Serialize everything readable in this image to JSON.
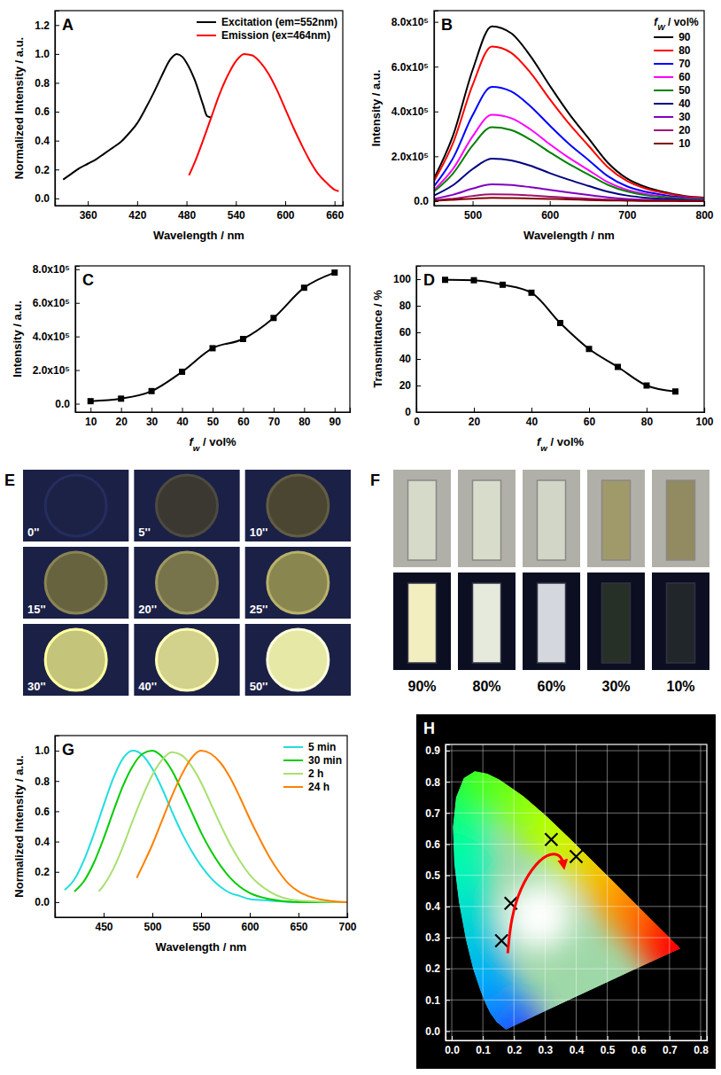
{
  "chart_data": [
    {
      "type": "line",
      "title": "A",
      "xlabel": "Wavelength / nm",
      "ylabel": "Normalized Intensity / a.u.",
      "xlim": [
        320,
        670
      ],
      "ylim": [
        -0.05,
        1.3
      ],
      "xticks": [
        360,
        420,
        480,
        540,
        600,
        660
      ],
      "yticks": [
        {
          "value": 0,
          "label": "0.0"
        },
        0.2,
        0.4,
        0.6,
        0.8,
        {
          "value": 1,
          "label": "1.0"
        },
        1.2
      ],
      "legend": "upper right",
      "series": [
        {
          "name": "Excitation (em=552nm)",
          "color": "#000000",
          "x": [
            330,
            340,
            350,
            360,
            370,
            380,
            390,
            400,
            410,
            420,
            430,
            440,
            450,
            460,
            468,
            475,
            480,
            490,
            500,
            505,
            510
          ],
          "values": [
            0.13,
            0.17,
            0.21,
            0.24,
            0.27,
            0.31,
            0.35,
            0.39,
            0.45,
            0.52,
            0.62,
            0.73,
            0.85,
            0.96,
            1.0,
            0.98,
            0.94,
            0.82,
            0.65,
            0.57,
            0.56
          ]
        },
        {
          "name": "Emission (ex=464nm)",
          "color": "#ff0000",
          "x": [
            483,
            490,
            500,
            510,
            520,
            530,
            540,
            550,
            560,
            570,
            580,
            590,
            600,
            610,
            620,
            630,
            640,
            650,
            660,
            665
          ],
          "values": [
            0.16,
            0.25,
            0.4,
            0.56,
            0.72,
            0.85,
            0.95,
            1.0,
            0.99,
            0.94,
            0.86,
            0.75,
            0.62,
            0.49,
            0.37,
            0.26,
            0.17,
            0.11,
            0.06,
            0.05
          ]
        }
      ]
    },
    {
      "type": "line",
      "title": "B",
      "xlabel": "Wavelength / nm",
      "ylabel": "Intensity / a.u.",
      "xlim": [
        450,
        800
      ],
      "ylim": [
        -20000,
        850000
      ],
      "xticks": [
        500,
        600,
        700,
        800
      ],
      "yticks": [
        {
          "value": 0,
          "label": "0.0"
        },
        {
          "value": 200000,
          "label": "2.0x10⁵"
        },
        {
          "value": 400000,
          "label": "4.0x10⁵"
        },
        {
          "value": 600000,
          "label": "6.0x10⁵"
        },
        {
          "value": 800000,
          "label": "8.0x10⁵"
        }
      ],
      "legend": "upper right",
      "legend_title": "fW / vol%",
      "x": [
        450,
        475,
        500,
        525,
        550,
        575,
        600,
        625,
        650,
        675,
        700,
        725,
        750,
        775,
        800
      ],
      "series": [
        {
          "name": "90",
          "color": "#000000",
          "values": [
            101000,
            296000,
            585000,
            780000,
            749000,
            647000,
            515000,
            390000,
            281000,
            172000,
            101000,
            62000,
            39000,
            23000,
            16000
          ]
        },
        {
          "name": "80",
          "color": "#ff0000",
          "values": [
            90000,
            262000,
            518000,
            690000,
            662000,
            573000,
            455000,
            345000,
            248000,
            152000,
            90000,
            55000,
            35000,
            21000,
            14000
          ]
        },
        {
          "name": "70",
          "color": "#0000ff",
          "values": [
            66000,
            194000,
            383000,
            510000,
            490000,
            423000,
            337000,
            255000,
            184000,
            112000,
            66000,
            41000,
            26000,
            15000,
            10000
          ]
        },
        {
          "name": "60",
          "color": "#ff00ff",
          "values": [
            50000,
            146000,
            289000,
            385000,
            370000,
            320000,
            254000,
            193000,
            139000,
            85000,
            50000,
            31000,
            19000,
            12000,
            8000
          ]
        },
        {
          "name": "50",
          "color": "#008000",
          "values": [
            43000,
            125000,
            248000,
            330000,
            317000,
            274000,
            218000,
            165000,
            119000,
            73000,
            43000,
            26000,
            17000,
            10000,
            7000
          ]
        },
        {
          "name": "40",
          "color": "#000080",
          "values": [
            25000,
            72000,
            143000,
            190000,
            182000,
            158000,
            125000,
            95000,
            68000,
            42000,
            25000,
            15000,
            10000,
            6000,
            4000
          ]
        },
        {
          "name": "30",
          "color": "#8000c0",
          "values": [
            10000,
            29000,
            56000,
            75000,
            72000,
            62000,
            50000,
            38000,
            27000,
            17000,
            10000,
            6000,
            4000,
            2000,
            2000
          ]
        },
        {
          "name": "20",
          "color": "#a01070",
          "values": [
            4000,
            11000,
            23000,
            30000,
            29000,
            25000,
            20000,
            15000,
            11000,
            7000,
            4000,
            2000,
            2000,
            1000,
            1000
          ]
        },
        {
          "name": "10",
          "color": "#800000",
          "values": [
            2000,
            6000,
            11000,
            15000,
            14000,
            12000,
            10000,
            8000,
            5000,
            3000,
            2000,
            1000,
            1000,
            0,
            0
          ]
        }
      ]
    },
    {
      "type": "line",
      "title": "C",
      "xlabel": "fw / vol%",
      "ylabel": "Intensity / a.u.",
      "xlim": [
        5,
        95
      ],
      "ylim": [
        -50000,
        820000
      ],
      "xticks": [
        10,
        20,
        30,
        40,
        50,
        60,
        70,
        80,
        90
      ],
      "yticks": [
        {
          "value": 0,
          "label": "0.0"
        },
        {
          "value": 200000,
          "label": "2.0x10⁵"
        },
        {
          "value": 400000,
          "label": "4.0x10⁵"
        },
        {
          "value": 600000,
          "label": "6.0x10⁵"
        },
        {
          "value": 800000,
          "label": "8.0x10⁵"
        }
      ],
      "marker": "square",
      "color": "#000000",
      "x": [
        10,
        20,
        30,
        40,
        50,
        60,
        70,
        80,
        90
      ],
      "values": [
        15000,
        30000,
        75000,
        190000,
        330000,
        385000,
        510000,
        690000,
        780000
      ]
    },
    {
      "type": "line",
      "title": "D",
      "xlabel": "fw / vol%",
      "ylabel": "Transmittance / %",
      "xlim": [
        0,
        100
      ],
      "ylim": [
        0,
        110
      ],
      "xticks": [
        0,
        20,
        40,
        60,
        80,
        100
      ],
      "yticks": [
        0,
        20,
        40,
        60,
        80,
        100
      ],
      "marker": "square",
      "color": "#000000",
      "x": [
        10,
        20,
        30,
        40,
        50,
        60,
        70,
        80,
        90
      ],
      "values": [
        99.5,
        99.2,
        95.8,
        89.8,
        67,
        47.5,
        34,
        20,
        15.5
      ]
    },
    {
      "type": "image",
      "title": "E",
      "categories": [
        "0''",
        "5''",
        "10''",
        "15''",
        "20''",
        "25''",
        "30''",
        "40''",
        "50''"
      ],
      "colors": [
        "#1c2246",
        "#3a3830",
        "#4a4632",
        "#67633f",
        "#77734a",
        "#8a8650",
        "#c4c47a",
        "#d2d28c",
        "#e6e8a6"
      ]
    },
    {
      "type": "image",
      "title": "F",
      "categories": [
        "90%",
        "80%",
        "60%",
        "30%",
        "10%"
      ],
      "colors": [
        [
          "#d6dac8",
          "#f2eec0"
        ],
        [
          "#d8dcca",
          "#e6eadc"
        ],
        [
          "#d2d6c6",
          "#d4d8de"
        ],
        [
          "#a09a6a",
          "#263026"
        ],
        [
          "#928a60",
          "#20262a"
        ]
      ]
    },
    {
      "type": "line",
      "title": "G",
      "xlabel": "Wavelength / nm",
      "ylabel": "Normalized Intensity / a.u.",
      "xlim": [
        400,
        700
      ],
      "ylim": [
        -0.1,
        1.1
      ],
      "xticks": [
        450,
        500,
        550,
        600,
        650,
        700
      ],
      "yticks": [
        {
          "value": 0,
          "label": "0.0"
        },
        0.2,
        0.4,
        0.6,
        0.8,
        {
          "value": 1,
          "label": "1.0"
        }
      ],
      "legend": "upper right",
      "series": [
        {
          "name": "5 min",
          "color": "#22dede",
          "x": [
            410,
            420,
            430,
            440,
            450,
            460,
            470,
            480,
            490,
            500,
            510,
            520,
            530,
            540,
            550,
            560,
            570,
            580,
            590,
            600,
            620,
            650,
            700
          ],
          "values": [
            0.08,
            0.15,
            0.28,
            0.45,
            0.64,
            0.82,
            0.95,
            1.0,
            0.97,
            0.88,
            0.75,
            0.6,
            0.46,
            0.34,
            0.24,
            0.16,
            0.1,
            0.06,
            0.04,
            0.02,
            0.01,
            0,
            0
          ]
        },
        {
          "name": "30 min",
          "color": "#00cc00",
          "x": [
            420,
            430,
            440,
            450,
            460,
            470,
            480,
            490,
            500,
            510,
            520,
            530,
            540,
            550,
            560,
            570,
            580,
            590,
            600,
            620,
            650,
            700
          ],
          "values": [
            0.07,
            0.14,
            0.26,
            0.42,
            0.6,
            0.77,
            0.9,
            0.98,
            1.0,
            0.96,
            0.87,
            0.74,
            0.6,
            0.46,
            0.34,
            0.24,
            0.16,
            0.1,
            0.06,
            0.02,
            0,
            0
          ]
        },
        {
          "name": "2 h",
          "color": "#a8e070",
          "x": [
            445,
            450,
            460,
            470,
            480,
            490,
            500,
            510,
            520,
            530,
            540,
            550,
            560,
            570,
            580,
            590,
            600,
            620,
            650,
            700
          ],
          "values": [
            0.07,
            0.11,
            0.22,
            0.37,
            0.54,
            0.7,
            0.84,
            0.94,
            0.99,
            0.97,
            0.9,
            0.79,
            0.65,
            0.51,
            0.38,
            0.27,
            0.18,
            0.07,
            0.01,
            0
          ]
        },
        {
          "name": "24 h",
          "color": "#ff8000",
          "x": [
            484,
            490,
            500,
            510,
            520,
            530,
            540,
            550,
            560,
            570,
            580,
            590,
            600,
            610,
            620,
            630,
            640,
            650,
            660,
            680,
            700
          ],
          "values": [
            0.16,
            0.24,
            0.38,
            0.54,
            0.7,
            0.84,
            0.95,
            1.0,
            0.98,
            0.92,
            0.82,
            0.69,
            0.55,
            0.42,
            0.3,
            0.2,
            0.12,
            0.07,
            0.04,
            0.01,
            0
          ]
        }
      ]
    },
    {
      "type": "scatter",
      "title": "H",
      "marker": "x",
      "color": "#000000",
      "grid": true,
      "xlim": [
        -0.02,
        0.82
      ],
      "ylim": [
        -0.03,
        0.92
      ],
      "xticks": [
        {
          "value": 0,
          "label": "0.0"
        },
        0.1,
        0.2,
        0.3,
        0.4,
        0.5,
        0.6,
        0.7,
        0.8
      ],
      "yticks": [
        {
          "value": 0,
          "label": "0.0"
        },
        0.1,
        0.2,
        0.3,
        0.4,
        0.5,
        0.6,
        0.7,
        0.8,
        0.9
      ],
      "x": [
        0.16,
        0.19,
        0.32,
        0.4
      ],
      "values": [
        0.29,
        0.41,
        0.615,
        0.56
      ],
      "locus": {
        "x": [
          0.1741,
          0.144,
          0.1241,
          0.1096,
          0.0913,
          0.0687,
          0.0454,
          0.0235,
          0.0082,
          0.0039,
          0.0139,
          0.0389,
          0.0743,
          0.1142,
          0.1547,
          0.2296,
          0.3016,
          0.3731,
          0.4441,
          0.5125,
          0.5752,
          0.627,
          0.6915,
          0.726,
          0.7347
        ],
        "y": [
          0.005,
          0.0297,
          0.0578,
          0.0868,
          0.1327,
          0.2007,
          0.295,
          0.4127,
          0.5384,
          0.6548,
          0.7502,
          0.812,
          0.8338,
          0.8262,
          0.8059,
          0.7543,
          0.6923,
          0.6245,
          0.5547,
          0.4866,
          0.4242,
          0.3725,
          0.3083,
          0.274,
          0.2653
        ]
      },
      "arrow": {
        "color": "#ff0000",
        "x": [
          0.18,
          0.19,
          0.22,
          0.27,
          0.32,
          0.355,
          0.36
        ],
        "y": [
          0.25,
          0.36,
          0.46,
          0.54,
          0.575,
          0.56,
          0.53
        ]
      }
    }
  ]
}
